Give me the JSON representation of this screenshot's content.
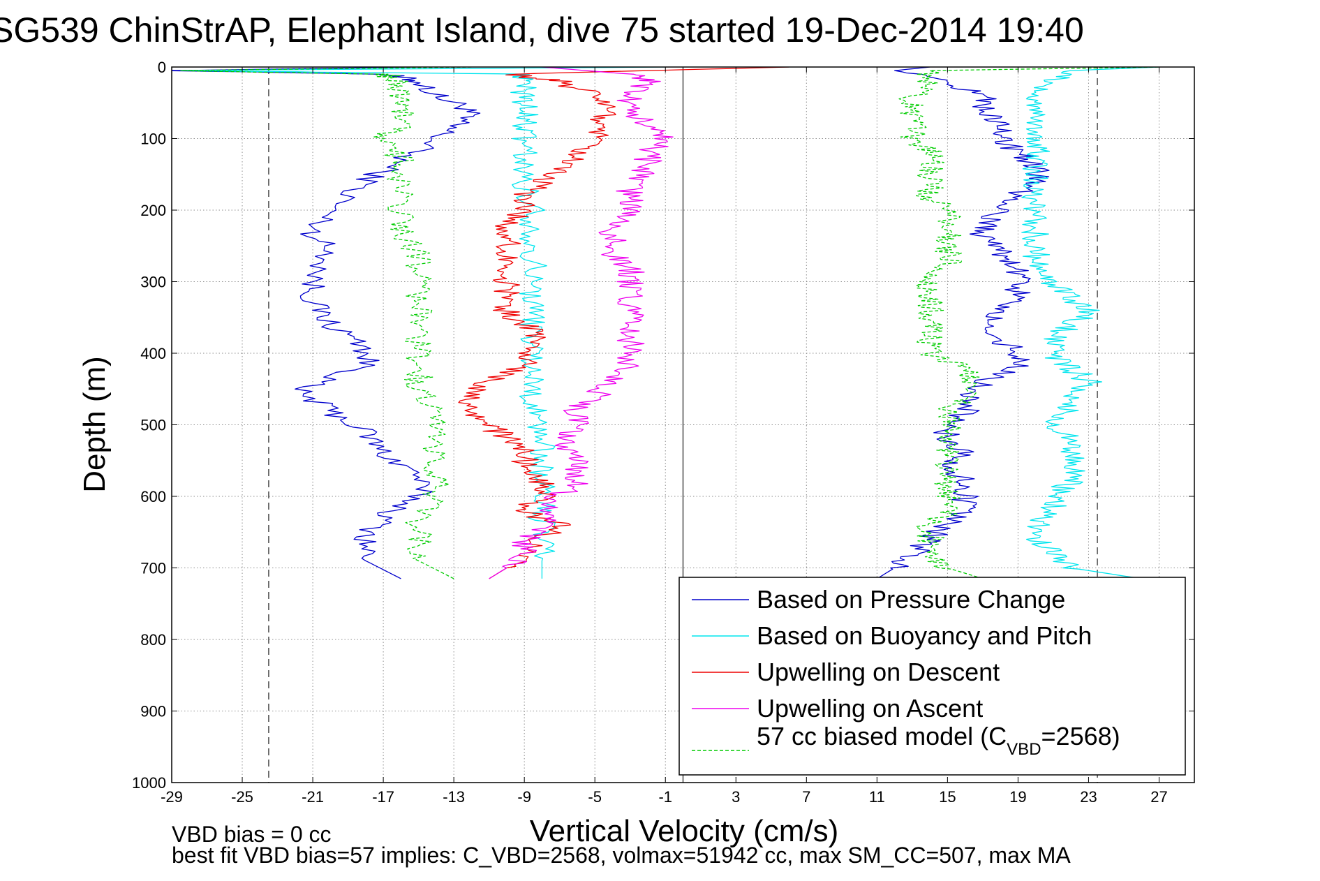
{
  "chart_data": {
    "type": "line",
    "title": "SG539 ChinStrAP, Elephant Island, dive 75 started 19-Dec-2014 19:40",
    "xlabel": "Vertical Velocity (cm/s)",
    "ylabel": "Depth (m)",
    "xlim": [
      -29,
      29
    ],
    "ylim": [
      0,
      1000
    ],
    "y_reversed": true,
    "grid": true,
    "legend_position": "bottom-right",
    "xticks": [
      "-29",
      "-25",
      "-21",
      "-17",
      "-13",
      "-9",
      "-5",
      "-1",
      "3",
      "7",
      "11",
      "15",
      "19",
      "23",
      "27"
    ],
    "yticks": [
      "0",
      "100",
      "200",
      "300",
      "400",
      "500",
      "600",
      "700",
      "800",
      "900",
      "1000"
    ],
    "reference_lines": [
      {
        "orientation": "vertical",
        "x": -23.5,
        "style": "dashed"
      },
      {
        "orientation": "vertical",
        "x": 0,
        "style": "solid"
      },
      {
        "orientation": "vertical",
        "x": 23.5,
        "style": "dashed"
      }
    ],
    "series": [
      {
        "name": "Based on Pressure Change",
        "color": "#0000cc",
        "style": "solid",
        "descent": {
          "depth": [
            0,
            5,
            10,
            20,
            40,
            60,
            80,
            100,
            130,
            160,
            200,
            230,
            260,
            300,
            330,
            360,
            390,
            420,
            450,
            480,
            510,
            540,
            570,
            600,
            630,
            660,
            690,
            715
          ],
          "velocity": [
            -15,
            -29,
            -17,
            -15,
            -14,
            -12,
            -13,
            -14,
            -16,
            -18,
            -20,
            -21,
            -20,
            -21,
            -21,
            -20,
            -18,
            -18,
            -22,
            -20,
            -18,
            -17,
            -15,
            -15,
            -17,
            -18,
            -18,
            -16
          ]
        },
        "ascent": {
          "depth": [
            715,
            700,
            680,
            660,
            640,
            620,
            600,
            580,
            560,
            540,
            520,
            500,
            480,
            460,
            440,
            420,
            400,
            380,
            360,
            340,
            320,
            300,
            280,
            260,
            240,
            220,
            200,
            180,
            160,
            140,
            120,
            100,
            80,
            60,
            40,
            20,
            5,
            0
          ],
          "velocity": [
            11,
            12,
            13,
            14,
            15,
            16,
            16,
            16,
            15,
            16,
            15,
            15,
            16,
            16,
            17,
            19,
            19,
            18,
            17,
            18,
            19,
            19,
            19,
            18,
            17,
            17,
            18,
            19,
            20,
            20,
            19,
            18,
            18,
            17,
            17,
            15,
            12,
            14
          ]
        }
      },
      {
        "name": "Based on Buoyancy and Pitch",
        "color": "#00e5ee",
        "style": "solid",
        "descent": {
          "depth": [
            0,
            5,
            10,
            20,
            40,
            60,
            80,
            100,
            130,
            160,
            200,
            230,
            260,
            300,
            330,
            360,
            390,
            420,
            450,
            480,
            510,
            540,
            570,
            600,
            630,
            660,
            690,
            715
          ],
          "velocity": [
            -1,
            -29,
            -9,
            -9,
            -9,
            -9,
            -9,
            -9,
            -9,
            -9,
            -8.5,
            -8.5,
            -8.5,
            -8.5,
            -8.5,
            -8.5,
            -8.5,
            -8.5,
            -8.5,
            -8.5,
            -8,
            -8,
            -8,
            -8,
            -8,
            -8,
            -8,
            -8
          ]
        },
        "ascent": {
          "depth": [
            715,
            700,
            680,
            660,
            640,
            620,
            600,
            580,
            560,
            540,
            520,
            500,
            480,
            460,
            440,
            420,
            400,
            380,
            360,
            340,
            320,
            300,
            280,
            260,
            240,
            220,
            200,
            180,
            160,
            140,
            120,
            100,
            80,
            60,
            40,
            20,
            5,
            0
          ],
          "velocity": [
            26,
            22,
            21,
            20,
            20,
            21,
            21,
            22,
            22,
            22,
            22,
            21,
            22,
            22,
            23,
            22,
            21,
            21,
            22,
            23,
            22,
            21,
            20,
            20,
            20,
            20,
            20,
            20,
            20,
            20,
            20,
            20,
            20,
            20,
            20,
            21,
            22,
            27
          ]
        }
      },
      {
        "name": "Upwelling on Descent",
        "color": "#ee0000",
        "style": "solid",
        "depth": [
          0,
          10,
          20,
          40,
          60,
          80,
          100,
          120,
          140,
          160,
          180,
          200,
          220,
          240,
          260,
          280,
          300,
          320,
          340,
          360,
          380,
          400,
          420,
          440,
          460,
          480,
          500,
          520,
          540,
          560,
          580,
          600,
          620,
          640,
          660,
          680,
          700,
          715
        ],
        "velocity": [
          6,
          -10,
          -7,
          -5,
          -4,
          -5,
          -5,
          -6,
          -7,
          -8,
          -9,
          -9,
          -10,
          -10,
          -10,
          -10,
          -10,
          -10,
          -10,
          -9,
          -8,
          -9,
          -9,
          -11,
          -12,
          -12,
          -11,
          -10,
          -9,
          -9,
          -8,
          -8,
          -9,
          -7,
          -8,
          -9,
          -10,
          -11
        ]
      },
      {
        "name": "Upwelling on Ascent",
        "color": "#ee00ee",
        "style": "solid",
        "depth": [
          0,
          10,
          20,
          40,
          60,
          80,
          100,
          120,
          140,
          160,
          180,
          200,
          220,
          240,
          260,
          280,
          300,
          320,
          340,
          360,
          380,
          400,
          420,
          440,
          460,
          480,
          500,
          520,
          540,
          560,
          580,
          600,
          620,
          640,
          660,
          680,
          700,
          715
        ],
        "velocity": [
          -8,
          -3,
          -2,
          -3,
          -3,
          -2,
          -1,
          -2,
          -2,
          -3,
          -3,
          -3,
          -4,
          -4,
          -4,
          -3,
          -3,
          -3,
          -3,
          -3,
          -3,
          -3,
          -3,
          -4,
          -5,
          -6,
          -6,
          -7,
          -6,
          -6,
          -6,
          -7,
          -8,
          -8,
          -9,
          -9,
          -10,
          -11
        ]
      },
      {
        "name": "57 cc biased model (C_VBD=2568)",
        "color": "#00cc00",
        "style": "dashed",
        "descent": {
          "depth": [
            0,
            5,
            10,
            20,
            40,
            60,
            80,
            100,
            130,
            160,
            200,
            230,
            260,
            300,
            330,
            360,
            390,
            420,
            450,
            480,
            510,
            540,
            570,
            600,
            630,
            660,
            690,
            715
          ],
          "velocity": [
            -12,
            -29,
            -17,
            -16,
            -16,
            -16,
            -16,
            -17,
            -16,
            -16,
            -16,
            -16,
            -15,
            -15,
            -15,
            -15,
            -15,
            -15,
            -15,
            -14,
            -14,
            -14,
            -14,
            -14,
            -15,
            -15,
            -15,
            -13
          ]
        },
        "ascent": {
          "depth": [
            715,
            700,
            680,
            660,
            640,
            620,
            600,
            580,
            560,
            540,
            520,
            500,
            480,
            460,
            440,
            420,
            400,
            380,
            360,
            340,
            320,
            300,
            280,
            260,
            240,
            220,
            200,
            180,
            160,
            140,
            120,
            100,
            80,
            60,
            40,
            20,
            5,
            0
          ],
          "velocity": [
            17,
            15,
            14,
            14,
            14,
            15,
            15,
            15,
            15,
            15,
            15,
            15,
            15,
            16,
            16,
            16,
            14,
            14,
            14,
            14,
            14,
            14,
            15,
            15,
            15,
            15,
            15,
            14,
            14,
            14,
            14,
            13,
            13,
            13,
            13,
            14,
            14,
            27
          ]
        }
      }
    ],
    "legend": [
      {
        "text": "Based on Pressure Change",
        "color": "#0000cc",
        "style": "solid"
      },
      {
        "text": "Based on Buoyancy and Pitch",
        "color": "#00e5ee",
        "style": "solid"
      },
      {
        "text": "Upwelling on Descent",
        "color": "#ee0000",
        "style": "solid"
      },
      {
        "text": "Upwelling on Ascent",
        "color": "#ee00ee",
        "style": "solid"
      },
      {
        "text": "57 cc biased model (C",
        "subscript": "VBD",
        "suffix": "=2568)",
        "color": "#00cc00",
        "style": "dashed"
      }
    ],
    "annotations": [
      "VBD bias = 0 cc",
      "best fit VBD bias=57 implies: C_VBD=2568, volmax=51942 cc, max SM_CC=507, max MA"
    ]
  }
}
